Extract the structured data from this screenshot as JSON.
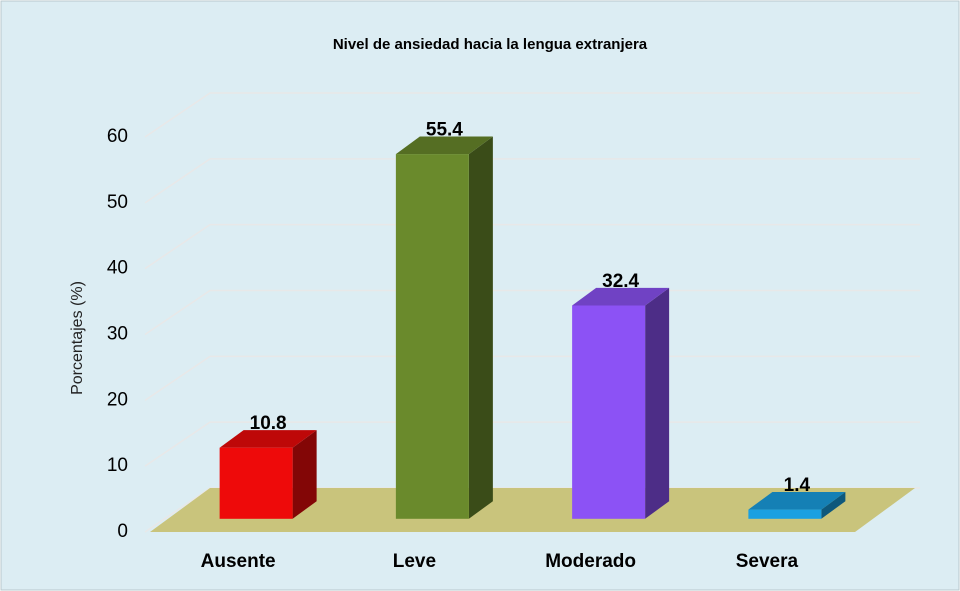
{
  "chart_data": {
    "type": "bar3d",
    "title": "Nivel de ansiedad hacia la lengua extranjera",
    "y_label": "Porcentajes (%)",
    "categories": [
      "Ausente",
      "Leve",
      "Moderado",
      "Severa"
    ],
    "values": [
      10.8,
      55.4,
      32.4,
      1.4
    ],
    "colors": [
      "#ee0a0a",
      "#6a8a2c",
      "#8c52f5",
      "#1aa0e2"
    ],
    "ylim": [
      0,
      60
    ],
    "yticks": [
      0,
      10,
      20,
      30,
      40,
      50,
      60
    ],
    "grid": true,
    "floor_color": "#c9c47c",
    "background": "#dcedf3"
  }
}
